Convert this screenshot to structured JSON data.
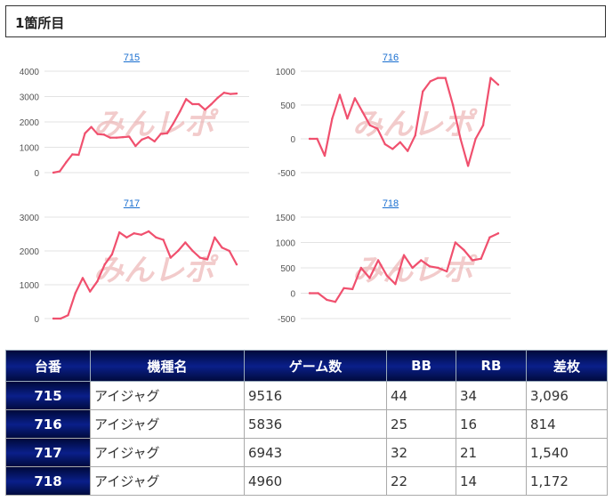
{
  "page": {
    "section_title": "1箇所目",
    "watermark_text": "みんレポ"
  },
  "colors": {
    "line": "#f0506e",
    "header_bg": "#0a1f8a",
    "link": "#1a6fd0",
    "grid": "#e3e3e3"
  },
  "chart_data": [
    {
      "type": "line",
      "title": "715",
      "ylim": [
        0,
        4000
      ],
      "yticks": [
        "4000",
        "3000",
        "2000",
        "1000",
        "0"
      ],
      "ytick_values": [
        4000,
        3000,
        2000,
        1000,
        0
      ],
      "grid": true,
      "series": [
        {
          "values": [
            0,
            50,
            400,
            720,
            700,
            1550,
            1800,
            1520,
            1500,
            1380,
            1380,
            1400,
            1420,
            1050,
            1300,
            1400,
            1230,
            1530,
            1550,
            1950,
            2400,
            2900,
            2700,
            2700,
            2480,
            2700,
            2950,
            3150,
            3100,
            3120
          ]
        }
      ]
    },
    {
      "type": "line",
      "title": "716",
      "ylim": [
        -500,
        1000
      ],
      "yticks": [
        "1000",
        "500",
        "0",
        "-500"
      ],
      "ytick_values": [
        1000,
        500,
        0,
        -500
      ],
      "grid": true,
      "series": [
        {
          "values": [
            0,
            0,
            -250,
            300,
            650,
            300,
            600,
            400,
            200,
            150,
            -80,
            -150,
            -50,
            -180,
            50,
            700,
            850,
            900,
            900,
            500,
            0,
            -400,
            0,
            200,
            900,
            800
          ]
        }
      ]
    },
    {
      "type": "line",
      "title": "717",
      "ylim": [
        0,
        3000
      ],
      "yticks": [
        "3000",
        "2000",
        "1000",
        "0"
      ],
      "ytick_values": [
        3000,
        2000,
        1000,
        0
      ],
      "grid": true,
      "series": [
        {
          "values": [
            0,
            0,
            100,
            750,
            1200,
            800,
            1100,
            1600,
            1900,
            2550,
            2400,
            2520,
            2480,
            2580,
            2400,
            2330,
            1800,
            2000,
            2250,
            2000,
            1800,
            1750,
            2400,
            2100,
            2000,
            1600
          ]
        }
      ]
    },
    {
      "type": "line",
      "title": "718",
      "ylim": [
        -500,
        1500
      ],
      "yticks": [
        "1500",
        "1000",
        "500",
        "0",
        "-500"
      ],
      "ytick_values": [
        1500,
        1000,
        500,
        0,
        -500
      ],
      "grid": true,
      "series": [
        {
          "values": [
            0,
            0,
            -130,
            -170,
            100,
            80,
            500,
            300,
            650,
            350,
            180,
            750,
            500,
            650,
            530,
            500,
            430,
            1000,
            850,
            650,
            680,
            1100,
            1180
          ]
        }
      ]
    }
  ],
  "table": {
    "headers": [
      "台番",
      "機種名",
      "ゲーム数",
      "BB",
      "RB",
      "差枚"
    ],
    "rows": [
      [
        "715",
        "アイジャグ",
        "9516",
        "44",
        "34",
        "3,096"
      ],
      [
        "716",
        "アイジャグ",
        "5836",
        "25",
        "16",
        "814"
      ],
      [
        "717",
        "アイジャグ",
        "6943",
        "32",
        "21",
        "1,540"
      ],
      [
        "718",
        "アイジャグ",
        "4960",
        "22",
        "14",
        "1,172"
      ]
    ]
  }
}
